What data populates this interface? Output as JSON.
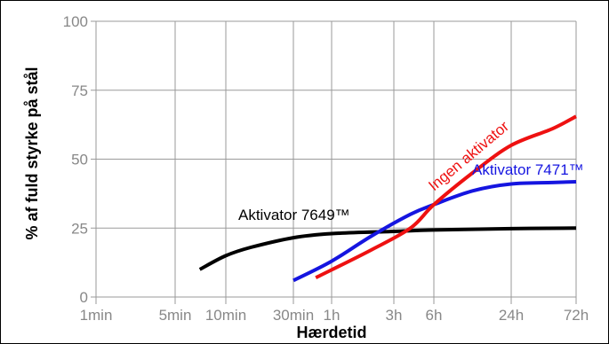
{
  "chart_data": {
    "type": "line",
    "xlabel": "Hærdetid",
    "ylabel": "% af fuld styrke på stål",
    "xscale": "log",
    "x_tick_labels": [
      "1min",
      "5min",
      "10min",
      "30min",
      "1h",
      "3h",
      "6h",
      "24h",
      "72h"
    ],
    "x_tick_minutes": [
      1,
      5,
      10,
      30,
      60,
      180,
      360,
      1440,
      4320
    ],
    "yticks": [
      0,
      25,
      50,
      75,
      100
    ],
    "ylim": [
      0,
      100
    ],
    "grid": true,
    "series": [
      {
        "name": "Aktivator 7649™",
        "color": "#000000",
        "points": [
          [
            7,
            10
          ],
          [
            10,
            15
          ],
          [
            15,
            18
          ],
          [
            30,
            21.5
          ],
          [
            60,
            23
          ],
          [
            180,
            23.8
          ],
          [
            360,
            24.3
          ],
          [
            1440,
            24.8
          ],
          [
            4320,
            25
          ]
        ]
      },
      {
        "name": "Aktivator 7471™",
        "color": "#1515e0",
        "points": [
          [
            30,
            6
          ],
          [
            60,
            13
          ],
          [
            120,
            22
          ],
          [
            240,
            30
          ],
          [
            360,
            33.5
          ],
          [
            720,
            38.5
          ],
          [
            1440,
            41
          ],
          [
            2880,
            41.5
          ],
          [
            4320,
            41.8
          ]
        ]
      },
      {
        "name": "Ingen aktivator",
        "color": "#ee1111",
        "points": [
          [
            45,
            7
          ],
          [
            120,
            17
          ],
          [
            240,
            25
          ],
          [
            360,
            33.5
          ],
          [
            720,
            45
          ],
          [
            1440,
            55
          ],
          [
            2880,
            61
          ],
          [
            4320,
            65.5
          ]
        ]
      }
    ]
  }
}
